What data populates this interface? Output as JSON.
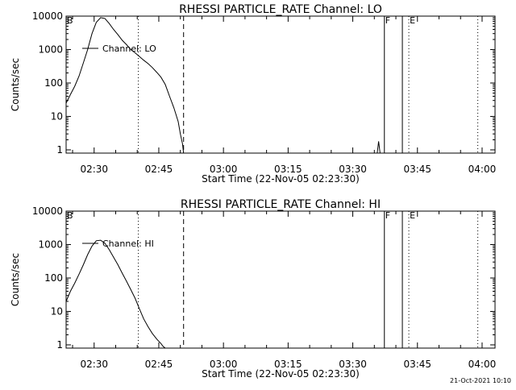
{
  "chart_data": [
    {
      "type": "line",
      "title": "RHESSI PARTICLE_RATE Channel: LO",
      "xlabel": "Start Time (22-Nov-05 02:23:30)",
      "ylabel": "Counts/sec",
      "yscale": "log",
      "xlim": [
        "02:23:30",
        "04:03:00"
      ],
      "ylim": [
        0.8,
        10000
      ],
      "xticks": [
        "02:30",
        "02:45",
        "03:00",
        "03:15",
        "03:30",
        "03:45",
        "04:00"
      ],
      "yticks": [
        "1",
        "10",
        "100",
        "1000",
        "10000"
      ],
      "legend": "Channel: LO",
      "legend_position": "top-left",
      "markers": [
        {
          "time": "02:23:30",
          "style": "dotted",
          "label": "B"
        },
        {
          "time": "02:40:15",
          "style": "dotted",
          "label": ""
        },
        {
          "time": "02:50:45",
          "style": "dashed",
          "label": ""
        },
        {
          "time": "03:37:20",
          "style": "solid",
          "label": "F"
        },
        {
          "time": "03:41:30",
          "style": "solid",
          "label": ""
        },
        {
          "time": "03:43:00",
          "style": "dotted",
          "label": "E"
        },
        {
          "time": "03:59:00",
          "style": "dotted",
          "label": ""
        }
      ],
      "series": [
        {
          "name": "Channel: LO",
          "x": [
            "02:23:30",
            "02:24:30",
            "02:25:30",
            "02:26:30",
            "02:27:30",
            "02:28:30",
            "02:29:30",
            "02:30:30",
            "02:31:30",
            "02:32:30",
            "02:33:30",
            "02:34:30",
            "02:35:30",
            "02:36:30",
            "02:37:30",
            "02:38:30",
            "02:39:30",
            "02:40:30",
            "02:41:30",
            "02:42:30",
            "02:43:30",
            "02:44:30",
            "02:45:30",
            "02:46:30",
            "02:47:30",
            "02:48:30",
            "02:49:30",
            "02:50:00",
            "02:50:30",
            "02:50:45"
          ],
          "values": [
            25,
            45,
            80,
            160,
            400,
            1000,
            3000,
            6500,
            9000,
            8500,
            6000,
            4000,
            2800,
            1900,
            1400,
            1000,
            800,
            620,
            480,
            380,
            290,
            210,
            150,
            90,
            40,
            18,
            7,
            3,
            1.5,
            0.8
          ]
        },
        {
          "name": "",
          "x": [
            "03:35:40",
            "03:36:00",
            "03:36:20"
          ],
          "values": [
            0.8,
            1.8,
            0.8
          ]
        }
      ]
    },
    {
      "type": "line",
      "title": "RHESSI PARTICLE_RATE Channel: HI",
      "xlabel": "Start Time (22-Nov-05 02:23:30)",
      "ylabel": "Counts/sec",
      "yscale": "log",
      "xlim": [
        "02:23:30",
        "04:03:00"
      ],
      "ylim": [
        0.8,
        10000
      ],
      "xticks": [
        "02:30",
        "02:45",
        "03:00",
        "03:15",
        "03:30",
        "03:45",
        "04:00"
      ],
      "yticks": [
        "1",
        "10",
        "100",
        "1000",
        "10000"
      ],
      "legend": "Channel: HI",
      "legend_position": "top-left",
      "markers": [
        {
          "time": "02:23:30",
          "style": "dotted",
          "label": "B"
        },
        {
          "time": "02:40:15",
          "style": "dotted",
          "label": ""
        },
        {
          "time": "02:50:45",
          "style": "dashed",
          "label": ""
        },
        {
          "time": "03:37:20",
          "style": "solid",
          "label": "F"
        },
        {
          "time": "03:41:30",
          "style": "solid",
          "label": ""
        },
        {
          "time": "03:43:00",
          "style": "dotted",
          "label": "E"
        },
        {
          "time": "03:59:00",
          "style": "dotted",
          "label": ""
        }
      ],
      "series": [
        {
          "name": "Channel: HI",
          "x": [
            "02:23:30",
            "02:24:30",
            "02:25:30",
            "02:26:30",
            "02:27:30",
            "02:28:30",
            "02:29:30",
            "02:30:30",
            "02:31:30",
            "02:32:30",
            "02:33:30",
            "02:34:30",
            "02:35:30",
            "02:36:30",
            "02:37:30",
            "02:38:30",
            "02:39:30",
            "02:40:30",
            "02:41:30",
            "02:42:30",
            "02:43:30",
            "02:44:30",
            "02:45:30",
            "02:46:00",
            "02:46:30"
          ],
          "values": [
            20,
            40,
            70,
            130,
            250,
            500,
            900,
            1300,
            1350,
            1100,
            700,
            420,
            250,
            140,
            80,
            45,
            25,
            12,
            6,
            3.5,
            2.2,
            1.5,
            1.1,
            0.9,
            0.8
          ]
        }
      ]
    }
  ],
  "footer": {
    "timestamp": "21-Oct-2021 10:10"
  }
}
